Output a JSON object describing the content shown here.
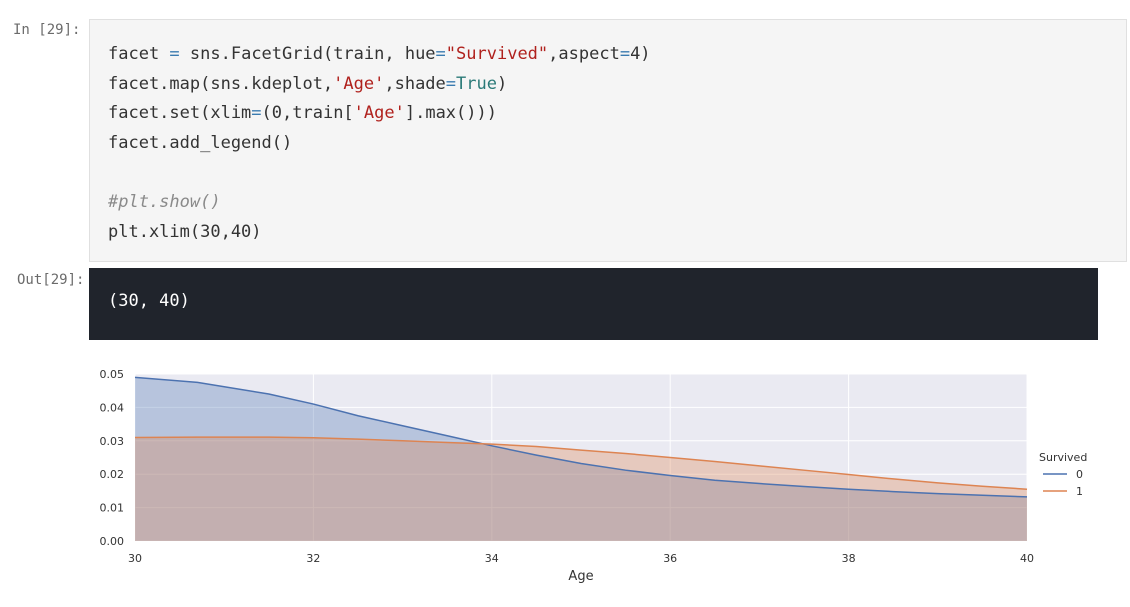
{
  "input_cell": {
    "prompt": "In [29]:",
    "lines": [
      [
        {
          "t": "facet "
        },
        {
          "t": "=",
          "c": "tok-op"
        },
        {
          "t": " sns.FacetGrid(train, hue"
        },
        {
          "t": "=",
          "c": "tok-op"
        },
        {
          "t": "\"Survived\"",
          "c": "tok-str"
        },
        {
          "t": ",aspect"
        },
        {
          "t": "=",
          "c": "tok-op"
        },
        {
          "t": "4)"
        }
      ],
      [
        {
          "t": "facet.map(sns.kdeplot,"
        },
        {
          "t": "'Age'",
          "c": "tok-str"
        },
        {
          "t": ",shade"
        },
        {
          "t": "=",
          "c": "tok-op"
        },
        {
          "t": "True",
          "c": "tok-kw"
        },
        {
          "t": ")"
        }
      ],
      [
        {
          "t": "facet.set(xlim"
        },
        {
          "t": "=",
          "c": "tok-op"
        },
        {
          "t": "(0,train["
        },
        {
          "t": "'Age'",
          "c": "tok-str"
        },
        {
          "t": "].max()))"
        }
      ],
      [
        {
          "t": "facet.add_legend()"
        }
      ],
      [
        {
          "t": ""
        }
      ],
      [
        {
          "t": "#plt.show()",
          "c": "tok-comment"
        }
      ],
      [
        {
          "t": "plt.xlim(30,40)"
        }
      ]
    ]
  },
  "output_cell": {
    "prompt": "Out[29]:",
    "text": "(30, 40)"
  },
  "chart_data": {
    "type": "area",
    "xlabel": "Age",
    "ylabel": "",
    "xlim": [
      30,
      40
    ],
    "ylim": [
      0,
      0.05
    ],
    "xticks": [
      30,
      32,
      34,
      36,
      38,
      40
    ],
    "yticks": [
      "0.00",
      "0.01",
      "0.02",
      "0.03",
      "0.04",
      "0.05"
    ],
    "grid": true,
    "legend": {
      "title": "Survived",
      "placement": "right"
    },
    "x": [
      30,
      30.7,
      31.5,
      32,
      32.5,
      33,
      33.5,
      34,
      34.5,
      35,
      35.5,
      36,
      36.5,
      37,
      37.5,
      38,
      38.5,
      39,
      39.5,
      40
    ],
    "series": [
      {
        "name": "0",
        "color": "#4c72b0",
        "values": [
          0.049,
          0.0475,
          0.044,
          0.041,
          0.0375,
          0.0345,
          0.0315,
          0.0285,
          0.0257,
          0.0232,
          0.0212,
          0.0196,
          0.0182,
          0.0172,
          0.0163,
          0.0155,
          0.0148,
          0.0142,
          0.0137,
          0.0132
        ]
      },
      {
        "name": "1",
        "color": "#dd8452",
        "values": [
          0.031,
          0.0311,
          0.0311,
          0.0309,
          0.0305,
          0.03,
          0.0295,
          0.029,
          0.0283,
          0.0272,
          0.0262,
          0.025,
          0.0238,
          0.0225,
          0.0212,
          0.0199,
          0.0186,
          0.0174,
          0.0164,
          0.0155
        ]
      }
    ]
  }
}
